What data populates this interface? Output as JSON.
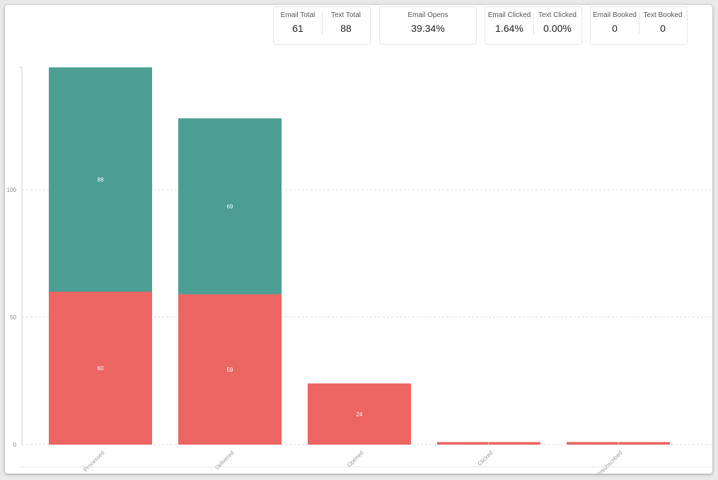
{
  "stats": {
    "card1": [
      {
        "label": "Email Total",
        "value": "61"
      },
      {
        "label": "Text Total",
        "value": "88"
      }
    ],
    "card2": [
      {
        "label": "Email Opens",
        "value": "39.34%"
      }
    ],
    "card3": [
      {
        "label": "Email Clicked",
        "value": "1.64%"
      },
      {
        "label": "Text Clicked",
        "value": "0.00%"
      }
    ],
    "card4": [
      {
        "label": "Email Booked",
        "value": "0"
      },
      {
        "label": "Text Booked",
        "value": "0"
      }
    ]
  },
  "colors": {
    "red": "#eb6562",
    "teal": "#4b9e91"
  },
  "chart_data": {
    "type": "bar",
    "stacked": true,
    "categories": [
      "Processed",
      "Delivered",
      "Opened",
      "Clicked",
      "Unsubscribed"
    ],
    "series": [
      {
        "color": "#eb6562",
        "values": [
          60,
          59,
          24,
          1,
          1
        ],
        "labels": [
          "60",
          "59",
          "24",
          "",
          ""
        ]
      },
      {
        "color": "#4b9e91",
        "values": [
          88,
          69,
          0,
          0,
          0
        ],
        "labels": [
          "88",
          "69",
          "",
          "",
          ""
        ]
      }
    ],
    "y_ticks": [
      "0",
      "50",
      "100"
    ],
    "ylim": [
      0,
      148
    ],
    "grid": true,
    "legend": "none"
  }
}
